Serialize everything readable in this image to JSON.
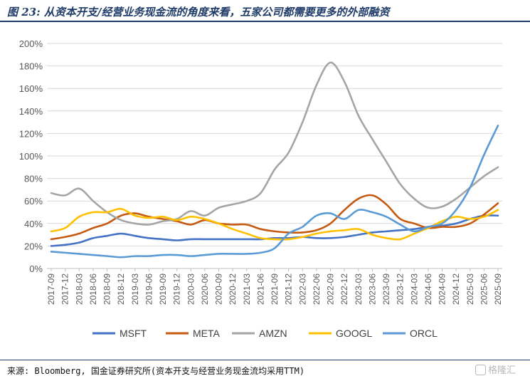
{
  "header": {
    "title": "图 23: 从资本开支/经营业务现金流的角度来看，五家公司都需要更多的外部融资"
  },
  "footer": {
    "source": "来源: Bloomberg, 国金证券研究所(资本开支与经营业务现金流均采用TTM)",
    "watermark": "格隆汇"
  },
  "chart_data": {
    "type": "line",
    "title": "",
    "xlabel": "",
    "ylabel": "",
    "ylim": [
      0,
      200
    ],
    "yticks": [
      "0%",
      "20%",
      "40%",
      "60%",
      "80%",
      "100%",
      "120%",
      "140%",
      "160%",
      "180%",
      "200%"
    ],
    "grid": "horizontal",
    "legend_position": "bottom",
    "categories": [
      "2017-09",
      "2017-12",
      "2018-03",
      "2018-06",
      "2018-09",
      "2018-12",
      "2019-03",
      "2019-06",
      "2019-09",
      "2019-12",
      "2020-03",
      "2020-06",
      "2020-09",
      "2020-12",
      "2021-03",
      "2021-06",
      "2021-09",
      "2021-12",
      "2022-03",
      "2022-06",
      "2022-09",
      "2022-12",
      "2023-03",
      "2023-06",
      "2023-09",
      "2023-12",
      "2024-03",
      "2024-06",
      "2024-09",
      "2024-12",
      "2025-03",
      "2025-06",
      "2025-09"
    ],
    "series": [
      {
        "name": "MSFT",
        "color": "#4472c4",
        "values": [
          20,
          21,
          23,
          27,
          29,
          31,
          29,
          27,
          26,
          25,
          26,
          26,
          26,
          26,
          26,
          26,
          27,
          27,
          28,
          27,
          27,
          28,
          30,
          32,
          33,
          34,
          35,
          37,
          38,
          40,
          44,
          47,
          47
        ]
      },
      {
        "name": "META",
        "color": "#c55a11",
        "values": [
          26,
          28,
          31,
          36,
          40,
          47,
          49,
          46,
          44,
          42,
          39,
          43,
          40,
          39,
          39,
          35,
          33,
          32,
          32,
          34,
          40,
          52,
          62,
          65,
          57,
          44,
          40,
          36,
          37,
          37,
          40,
          48,
          58
        ]
      },
      {
        "name": "AMZN",
        "color": "#a5a5a5",
        "values": [
          67,
          65,
          71,
          60,
          50,
          43,
          40,
          39,
          42,
          44,
          51,
          47,
          54,
          57,
          60,
          67,
          88,
          103,
          130,
          163,
          183,
          166,
          136,
          115,
          95,
          75,
          62,
          54,
          55,
          62,
          72,
          82,
          90
        ]
      },
      {
        "name": "GOOGL",
        "color": "#ffc000",
        "values": [
          33,
          36,
          46,
          50,
          50,
          53,
          47,
          45,
          46,
          43,
          46,
          44,
          40,
          35,
          31,
          27,
          26,
          26,
          28,
          31,
          33,
          34,
          35,
          30,
          27,
          26,
          31,
          36,
          42,
          46,
          44,
          46,
          52
        ]
      },
      {
        "name": "ORCL",
        "color": "#5b9bd5",
        "values": [
          15,
          14,
          13,
          12,
          11,
          10,
          11,
          11,
          12,
          12,
          11,
          12,
          13,
          13,
          13,
          14,
          18,
          31,
          37,
          47,
          49,
          44,
          52,
          50,
          46,
          39,
          33,
          37,
          40,
          52,
          72,
          101,
          127
        ]
      }
    ]
  }
}
